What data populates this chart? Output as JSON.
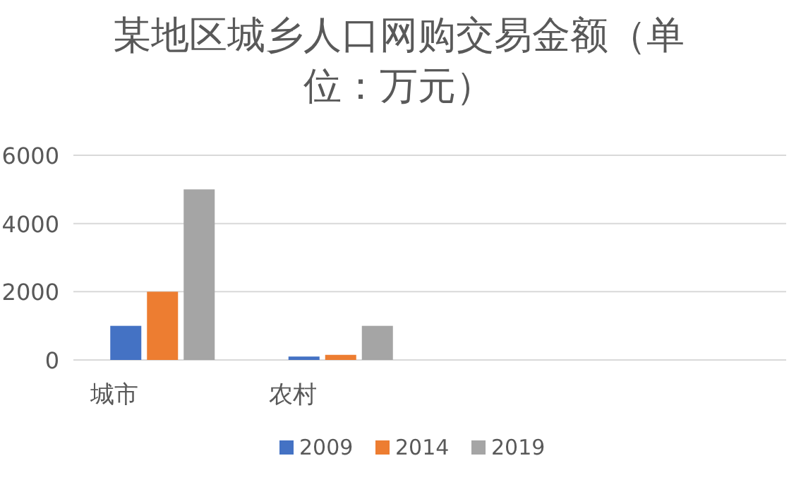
{
  "chart_data": {
    "type": "bar",
    "title": "某地区城乡人口网购交易金额（单位：万元）",
    "categories": [
      "城市",
      "农村",
      null,
      null
    ],
    "series": [
      {
        "name": "2009",
        "color": "#4472c4",
        "values": [
          1000,
          100,
          null,
          null
        ]
      },
      {
        "name": "2014",
        "color": "#ed7d31",
        "values": [
          2000,
          150,
          null,
          null
        ]
      },
      {
        "name": "2019",
        "color": "#a5a5a5",
        "values": [
          5000,
          1000,
          null,
          null
        ]
      }
    ],
    "ylim": [
      0,
      6000
    ],
    "yticks": [
      0,
      2000,
      4000,
      6000
    ],
    "grid": "y",
    "legend": "bottom"
  }
}
